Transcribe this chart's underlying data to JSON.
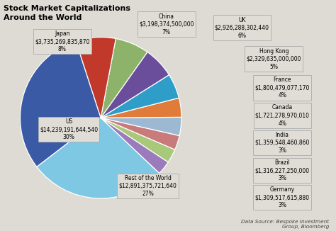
{
  "title": "Stock Market Capitalizations\nAround the World",
  "source": "Data Source: Bespoke Investment\nGroup, Bloomberg",
  "slices": [
    {
      "label": "US",
      "value": 14239191644540,
      "pct": 30,
      "color": "#3B5AA5"
    },
    {
      "label": "Rest of the World",
      "value": 12891375721640,
      "pct": 27,
      "color": "#7EC8E3"
    },
    {
      "label": "Germany",
      "value": 1309517615880,
      "pct": 3,
      "color": "#9B7BBB"
    },
    {
      "label": "Brazil",
      "value": 1316227250000,
      "pct": 3,
      "color": "#A8C87A"
    },
    {
      "label": "India",
      "value": 1359548460860,
      "pct": 3,
      "color": "#C97A7A"
    },
    {
      "label": "Canada",
      "value": 1721278970010,
      "pct": 4,
      "color": "#9DB8D2"
    },
    {
      "label": "France",
      "value": 1800479077170,
      "pct": 4,
      "color": "#E07B39"
    },
    {
      "label": "Hong Kong",
      "value": 2329635000000,
      "pct": 5,
      "color": "#2E9EC9"
    },
    {
      "label": "UK",
      "value": 2926288302440,
      "pct": 6,
      "color": "#6B4E9B"
    },
    {
      "label": "China",
      "value": 3198374500000,
      "pct": 7,
      "color": "#8DB36A"
    },
    {
      "label": "Japan",
      "value": 3735269835870,
      "pct": 8,
      "color": "#C0392B"
    }
  ],
  "bg_color": "#DDDBD4",
  "box_bg": "#E0DDD6",
  "box_ec": "#AAAAAA",
  "title_fontsize": 8.0,
  "label_fontsize": 5.5,
  "source_fontsize": 5.2,
  "startangle": 108
}
